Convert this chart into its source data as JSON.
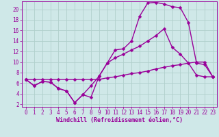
{
  "background_color": "#cfe8e8",
  "grid_color": "#b0d0cc",
  "line_color": "#990099",
  "markersize": 2.5,
  "linewidth": 1.0,
  "xlabel": "Windchill (Refroidissement éolien,°C)",
  "xlabel_fontsize": 6,
  "tick_fontsize": 5.5,
  "xlim": [
    -0.5,
    23.5
  ],
  "ylim": [
    1.5,
    21.5
  ],
  "yticks": [
    2,
    4,
    6,
    8,
    10,
    12,
    14,
    16,
    18,
    20
  ],
  "xticks": [
    0,
    1,
    2,
    3,
    4,
    5,
    6,
    7,
    8,
    9,
    10,
    11,
    12,
    13,
    14,
    15,
    16,
    17,
    18,
    19,
    20,
    21,
    22,
    23
  ],
  "series": [
    [
      6.7,
      5.5,
      6.3,
      6.2,
      5.0,
      4.5,
      2.3,
      3.8,
      3.3,
      7.3,
      9.8,
      12.3,
      12.5,
      14.0,
      18.7,
      21.2,
      21.3,
      21.0,
      20.5,
      20.3,
      17.5,
      9.8,
      9.5,
      7.2
    ],
    [
      6.7,
      5.5,
      6.3,
      6.2,
      5.0,
      4.5,
      2.3,
      3.8,
      5.5,
      7.3,
      9.8,
      10.8,
      11.5,
      12.3,
      13.0,
      14.0,
      15.0,
      16.3,
      12.8,
      11.5,
      9.8,
      7.5,
      7.2,
      7.2
    ],
    [
      6.7,
      6.7,
      6.7,
      6.7,
      6.7,
      6.7,
      6.7,
      6.7,
      6.7,
      6.7,
      7.0,
      7.2,
      7.5,
      7.8,
      8.0,
      8.3,
      8.7,
      9.0,
      9.3,
      9.5,
      9.8,
      10.0,
      10.0,
      7.2
    ]
  ]
}
